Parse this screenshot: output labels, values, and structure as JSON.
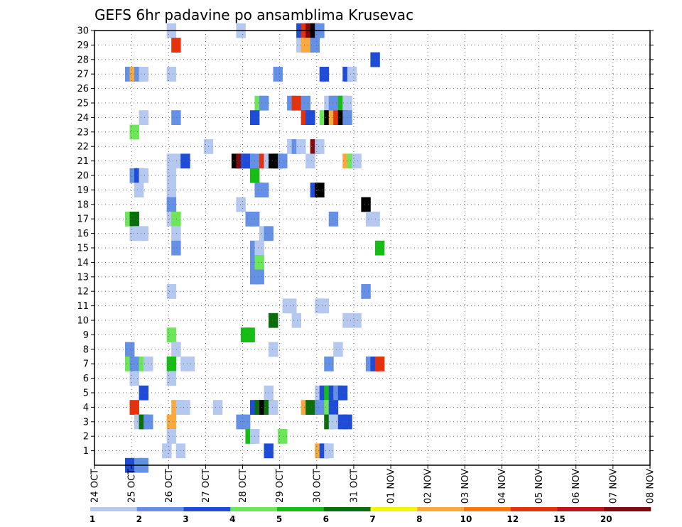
{
  "chart_data": {
    "type": "heatmap",
    "title": "GEFS 6hr padavine po ansamblima Krusevac",
    "y_ticks": [
      "1",
      "2",
      "3",
      "4",
      "5",
      "6",
      "7",
      "8",
      "9",
      "10",
      "11",
      "12",
      "13",
      "14",
      "15",
      "16",
      "17",
      "18",
      "19",
      "20",
      "21",
      "22",
      "23",
      "24",
      "25",
      "26",
      "27",
      "28",
      "29",
      "30"
    ],
    "x_ticks": [
      "24 OCT",
      "25 OCT",
      "26 OCT",
      "27 OCT",
      "28 OCT",
      "29 OCT",
      "30 OCT",
      "31 OCT",
      "01 NOV",
      "02 NOV",
      "03 NOV",
      "04 NOV",
      "05 NOV",
      "06 NOV",
      "07 NOV",
      "08 NOV"
    ],
    "x_range_days": [
      0,
      15
    ],
    "y_range": [
      0,
      30
    ],
    "step_hours": 6,
    "grid": "dotted",
    "colorbar": {
      "labels": [
        "1",
        "2",
        "3",
        "4",
        "5",
        "6",
        "7",
        "8",
        "10",
        "12",
        "15",
        "20"
      ],
      "colors": [
        "#b4c8f0",
        "#6491e6",
        "#1e4bd7",
        "#6ee65a",
        "#14be14",
        "#0a6e0a",
        "#f5f50a",
        "#faaa3c",
        "#fa780a",
        "#e6320a",
        "#c31414",
        "#820a0a"
      ]
    },
    "cells": [
      {
        "m": 30,
        "s": [
          [
            7.8,
            1
          ],
          [
            15.3,
            1
          ],
          [
            21.8,
            3
          ],
          [
            22.3,
            10
          ],
          [
            22.8,
            12
          ],
          [
            23.3,
            20
          ],
          [
            23.8,
            2
          ]
        ]
      },
      {
        "m": 29,
        "s": [
          [
            8.3,
            10
          ],
          [
            21.8,
            1
          ],
          [
            22.3,
            8
          ],
          [
            23.3,
            2
          ]
        ]
      },
      {
        "m": 28,
        "s": [
          [
            29.8,
            3
          ]
        ]
      },
      {
        "m": 27,
        "s": [
          [
            3.3,
            2
          ],
          [
            3.8,
            8
          ],
          [
            4.3,
            2
          ],
          [
            4.8,
            1
          ],
          [
            7.8,
            1
          ],
          [
            19.3,
            2
          ],
          [
            24.3,
            3
          ],
          [
            26.8,
            3
          ],
          [
            27.3,
            1
          ]
        ]
      },
      {
        "m": 25,
        "s": [
          [
            17.3,
            4
          ],
          [
            17.8,
            2
          ],
          [
            20.8,
            2
          ],
          [
            21.3,
            10
          ],
          [
            22.3,
            2
          ],
          [
            24.8,
            1
          ],
          [
            25.3,
            2
          ],
          [
            25.8,
            2
          ],
          [
            26.3,
            5
          ],
          [
            26.8,
            1
          ]
        ]
      },
      {
        "m": 24,
        "s": [
          [
            4.8,
            1
          ],
          [
            8.3,
            2
          ],
          [
            16.8,
            3
          ],
          [
            22.3,
            10
          ],
          [
            22.8,
            3
          ],
          [
            24.3,
            4
          ],
          [
            24.8,
            20
          ],
          [
            25.3,
            8
          ],
          [
            25.8,
            10
          ],
          [
            26.3,
            20
          ],
          [
            26.8,
            2
          ]
        ]
      },
      {
        "m": 23,
        "s": [
          [
            3.8,
            4
          ]
        ]
      },
      {
        "m": 22,
        "s": [
          [
            11.8,
            1
          ],
          [
            20.8,
            1
          ],
          [
            21.3,
            2
          ],
          [
            21.8,
            1
          ],
          [
            23.3,
            12
          ],
          [
            23.8,
            1
          ]
        ]
      },
      {
        "m": 21,
        "s": [
          [
            7.8,
            1
          ],
          [
            8.3,
            1
          ],
          [
            9.3,
            3
          ],
          [
            14.8,
            15
          ],
          [
            15.3,
            12
          ],
          [
            15.8,
            3
          ],
          [
            16.3,
            3
          ],
          [
            16.8,
            2
          ],
          [
            17.8,
            10
          ],
          [
            18.3,
            1
          ],
          [
            18.8,
            15
          ],
          [
            19.3,
            20
          ],
          [
            19.8,
            2
          ],
          [
            22.8,
            1
          ],
          [
            26.8,
            8
          ],
          [
            27.3,
            4
          ],
          [
            27.8,
            1
          ]
        ]
      },
      {
        "m": 20,
        "s": [
          [
            3.8,
            2
          ],
          [
            4.3,
            3
          ],
          [
            4.8,
            1
          ],
          [
            7.8,
            1
          ],
          [
            16.8,
            5
          ]
        ]
      },
      {
        "m": 19,
        "s": [
          [
            4.3,
            1
          ],
          [
            7.8,
            1
          ],
          [
            17.3,
            2
          ],
          [
            17.8,
            2
          ],
          [
            23.3,
            3
          ],
          [
            23.8,
            15
          ]
        ]
      },
      {
        "m": 18,
        "s": [
          [
            7.8,
            2
          ],
          [
            15.3,
            1
          ],
          [
            28.8,
            20
          ]
        ]
      },
      {
        "m": 17,
        "s": [
          [
            3.3,
            4
          ],
          [
            3.8,
            6
          ],
          [
            7.8,
            1
          ],
          [
            8.3,
            4
          ],
          [
            16.3,
            2
          ],
          [
            16.8,
            2
          ],
          [
            25.3,
            2
          ],
          [
            29.3,
            1
          ],
          [
            29.8,
            1
          ]
        ]
      },
      {
        "m": 16,
        "s": [
          [
            3.8,
            1
          ],
          [
            4.3,
            1
          ],
          [
            4.8,
            1
          ],
          [
            8.3,
            1
          ],
          [
            17.8,
            1
          ],
          [
            18.3,
            2
          ]
        ]
      },
      {
        "m": 15,
        "s": [
          [
            8.3,
            2
          ],
          [
            16.8,
            2
          ],
          [
            17.3,
            1
          ],
          [
            30.3,
            5
          ]
        ]
      },
      {
        "m": 14,
        "s": [
          [
            16.8,
            2
          ],
          [
            17.3,
            4
          ]
        ]
      },
      {
        "m": 13,
        "s": [
          [
            16.8,
            2
          ],
          [
            17.3,
            2
          ]
        ]
      },
      {
        "m": 12,
        "s": [
          [
            7.8,
            1
          ],
          [
            28.8,
            2
          ]
        ]
      },
      {
        "m": 11,
        "s": [
          [
            20.3,
            1
          ],
          [
            20.8,
            1
          ],
          [
            23.8,
            1
          ],
          [
            24.3,
            1
          ]
        ]
      },
      {
        "m": 10,
        "s": [
          [
            18.8,
            6
          ],
          [
            21.3,
            1
          ],
          [
            26.8,
            1
          ],
          [
            27.8,
            1
          ]
        ]
      },
      {
        "m": 9,
        "s": [
          [
            7.8,
            4
          ],
          [
            15.8,
            5
          ],
          [
            16.3,
            5
          ]
        ]
      },
      {
        "m": 8,
        "s": [
          [
            3.3,
            2
          ],
          [
            8.3,
            1
          ],
          [
            18.8,
            1
          ],
          [
            25.8,
            1
          ]
        ]
      },
      {
        "m": 7,
        "s": [
          [
            3.3,
            4
          ],
          [
            3.8,
            2
          ],
          [
            4.8,
            4
          ],
          [
            5.3,
            1
          ],
          [
            7.8,
            5
          ],
          [
            9.3,
            1
          ],
          [
            9.8,
            1
          ],
          [
            24.8,
            2
          ],
          [
            29.3,
            2
          ],
          [
            29.8,
            3
          ],
          [
            30.3,
            10
          ]
        ]
      },
      {
        "m": 6,
        "s": [
          [
            3.8,
            1
          ],
          [
            7.8,
            1
          ]
        ]
      },
      {
        "m": 5,
        "s": [
          [
            4.8,
            3
          ],
          [
            18.3,
            1
          ],
          [
            23.8,
            1
          ],
          [
            24.3,
            3
          ],
          [
            24.8,
            5
          ],
          [
            25.3,
            3
          ],
          [
            25.8,
            2
          ],
          [
            26.3,
            3
          ]
        ]
      },
      {
        "m": 4,
        "s": [
          [
            3.8,
            10
          ],
          [
            8.3,
            8
          ],
          [
            8.8,
            1
          ],
          [
            9.3,
            1
          ],
          [
            12.8,
            1
          ],
          [
            16.8,
            3
          ],
          [
            17.3,
            6
          ],
          [
            17.8,
            20
          ],
          [
            18.3,
            6
          ],
          [
            18.8,
            1
          ],
          [
            22.3,
            8
          ],
          [
            22.8,
            6
          ],
          [
            23.8,
            2
          ],
          [
            24.8,
            4
          ],
          [
            25.3,
            3
          ]
        ]
      },
      {
        "m": 3,
        "s": [
          [
            4.3,
            1
          ],
          [
            4.8,
            6
          ],
          [
            5.3,
            2
          ],
          [
            7.8,
            8
          ],
          [
            15.3,
            2
          ],
          [
            15.8,
            2
          ],
          [
            24.8,
            6
          ],
          [
            25.3,
            1
          ],
          [
            26.3,
            3
          ],
          [
            26.8,
            3
          ]
        ]
      },
      {
        "m": 2,
        "s": [
          [
            7.8,
            1
          ],
          [
            16.3,
            5
          ],
          [
            16.8,
            1
          ],
          [
            19.8,
            4
          ]
        ]
      },
      {
        "m": 1,
        "s": [
          [
            7.3,
            1
          ],
          [
            8.8,
            1
          ],
          [
            18.3,
            3
          ],
          [
            23.8,
            8
          ],
          [
            24.3,
            3
          ],
          [
            24.8,
            1
          ]
        ]
      },
      {
        "m": 0,
        "s": [
          [
            3.3,
            3
          ],
          [
            4.3,
            2
          ],
          [
            4.8,
            2
          ]
        ]
      }
    ]
  }
}
